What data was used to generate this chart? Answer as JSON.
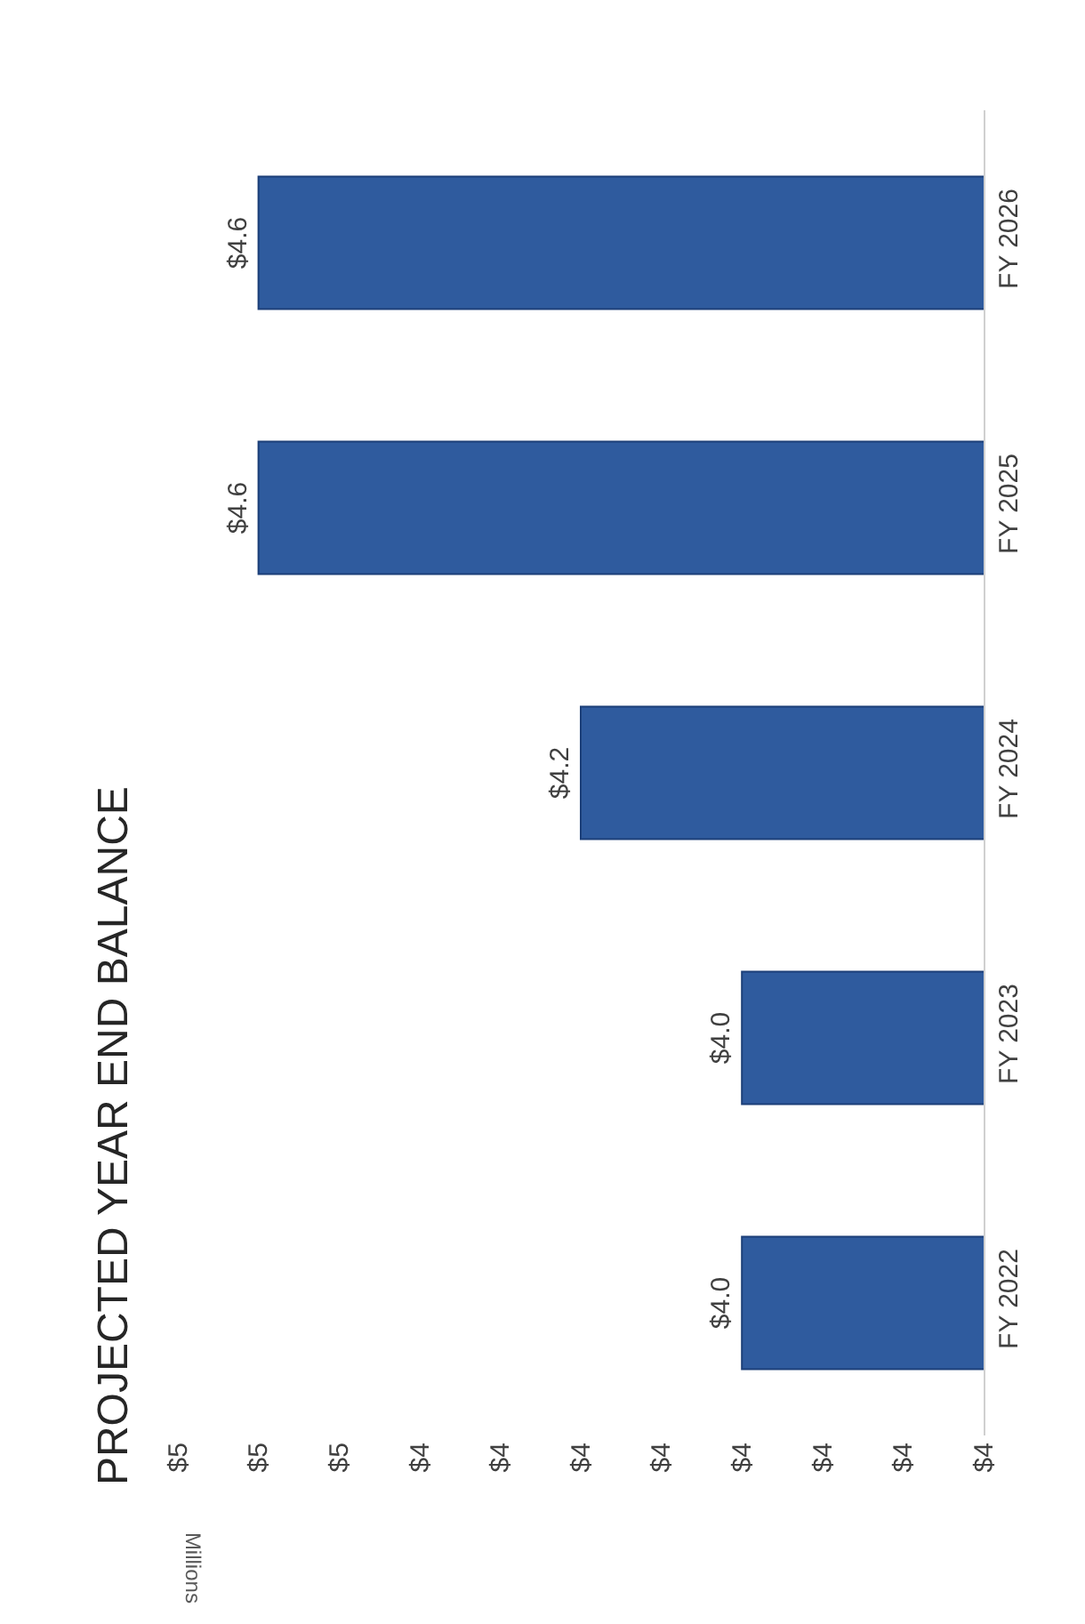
{
  "chart_data": {
    "type": "bar",
    "orientation": "horizontal",
    "title": "PROJECTED YEAR END BALANCE",
    "annotations": [
      "Millions"
    ],
    "categories": [
      "FY 2026",
      "FY 2025",
      "FY 2024",
      "FY 2023",
      "FY 2022"
    ],
    "values": [
      4.6,
      4.6,
      4.2,
      4.0,
      4.0
    ],
    "value_labels": [
      "$4.6",
      "$4.6",
      "$4.2",
      "$4.0",
      "$4.0"
    ],
    "color": "#2f5b9e",
    "xlim": [
      4.7,
      3.7
    ],
    "xticks": [
      {
        "value": 4.7,
        "label": "$5"
      },
      {
        "value": 4.6,
        "label": "$5"
      },
      {
        "value": 4.5,
        "label": "$5"
      },
      {
        "value": 4.4,
        "label": "$4"
      },
      {
        "value": 4.3,
        "label": "$4"
      },
      {
        "value": 4.2,
        "label": "$4"
      },
      {
        "value": 4.1,
        "label": "$4"
      },
      {
        "value": 4.0,
        "label": "$4"
      },
      {
        "value": 3.9,
        "label": "$4"
      },
      {
        "value": 3.8,
        "label": "$4"
      },
      {
        "value": 3.7,
        "label": "$4"
      }
    ],
    "grid": false,
    "legend": false
  }
}
